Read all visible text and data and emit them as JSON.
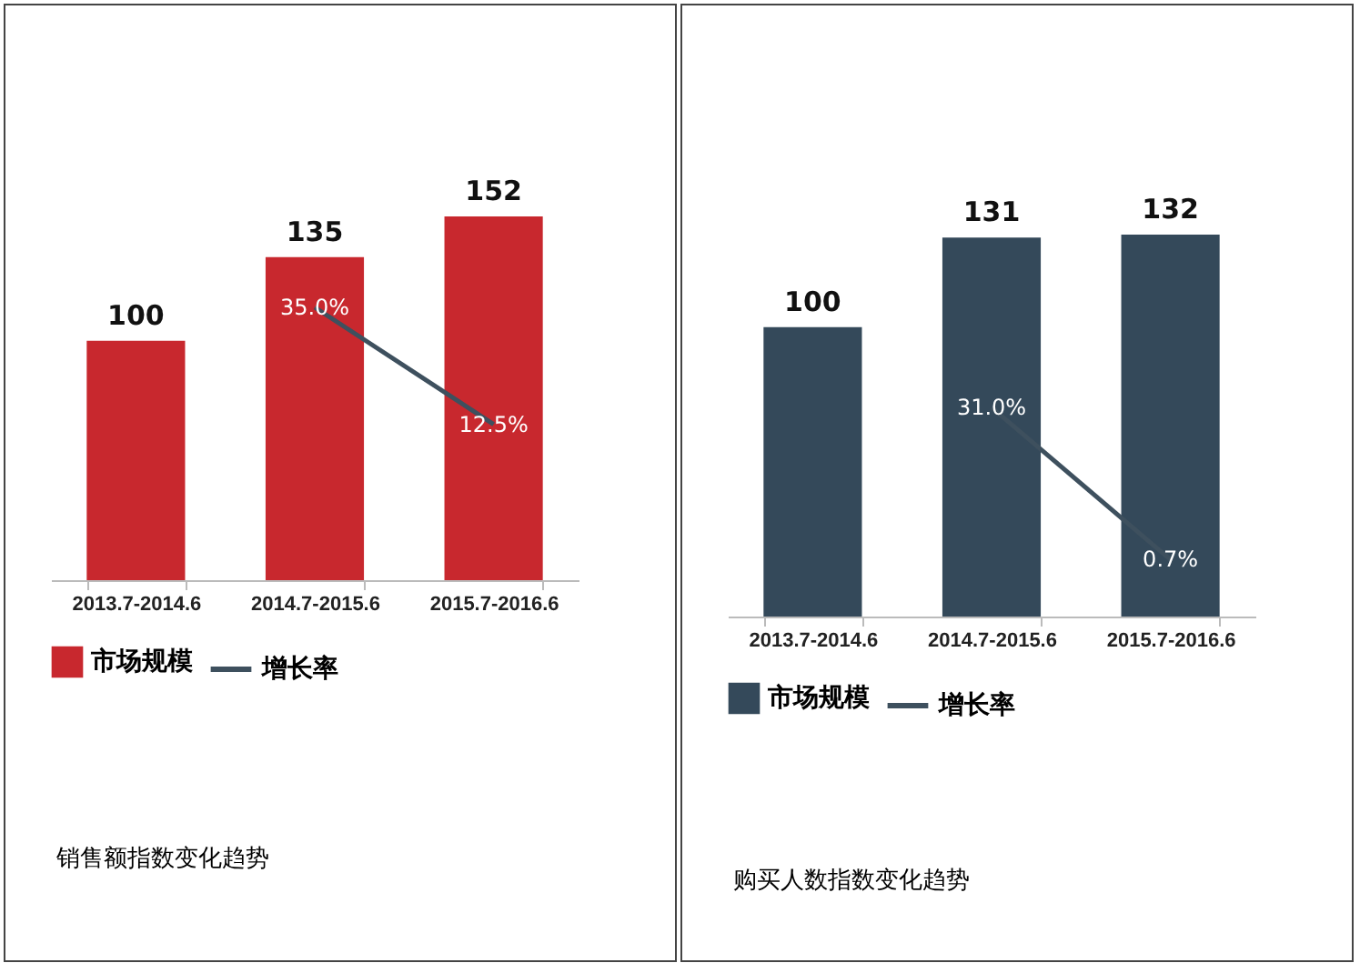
{
  "chart_data": [
    {
      "type": "bar",
      "categories": [
        "2013.7-2014.6",
        "2014.7-2015.6",
        "2015.7-2016.6"
      ],
      "series": [
        {
          "name": "市场规模",
          "color": "#c8282e",
          "values": [
            100,
            135,
            152
          ],
          "value_labels": [
            "100",
            "135",
            "152"
          ]
        },
        {
          "name": "增长率",
          "type": "line",
          "axis": "y2",
          "color": "#3e505e",
          "values": [
            null,
            35.0,
            12.5
          ],
          "value_labels": [
            null,
            "35.0%",
            "12.5%"
          ]
        }
      ],
      "tick_labels": "x",
      "legend": "bottom",
      "annotations": [
        "销售额指数变化趋势"
      ]
    },
    {
      "type": "bar",
      "categories": [
        "2013.7-2014.6",
        "2014.7-2015.6",
        "2015.7-2016.6"
      ],
      "series": [
        {
          "name": "市场规模",
          "color": "#34495a",
          "values": [
            100,
            131,
            132
          ],
          "value_labels": [
            "100",
            "131",
            "132"
          ]
        },
        {
          "name": "增长率",
          "type": "line",
          "axis": "y2",
          "color": "#3e505e",
          "values": [
            null,
            31.0,
            0.7
          ],
          "value_labels": [
            null,
            "31.0%",
            "0.7%"
          ]
        }
      ],
      "tick_labels": "x",
      "legend": "bottom",
      "annotations": [
        "购买人数指数变化趋势"
      ]
    }
  ]
}
